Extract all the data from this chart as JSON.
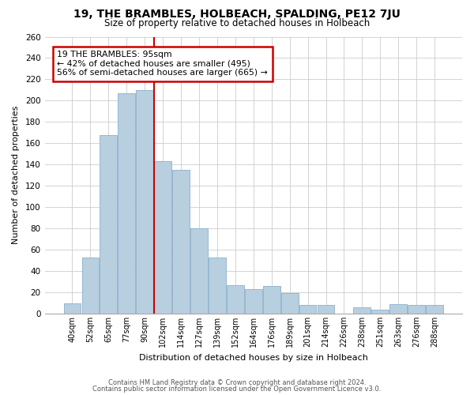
{
  "title": "19, THE BRAMBLES, HOLBEACH, SPALDING, PE12 7JU",
  "subtitle": "Size of property relative to detached houses in Holbeach",
  "xlabel": "Distribution of detached houses by size in Holbeach",
  "ylabel": "Number of detached properties",
  "bar_labels": [
    "40sqm",
    "52sqm",
    "65sqm",
    "77sqm",
    "90sqm",
    "102sqm",
    "114sqm",
    "127sqm",
    "139sqm",
    "152sqm",
    "164sqm",
    "176sqm",
    "189sqm",
    "201sqm",
    "214sqm",
    "226sqm",
    "238sqm",
    "251sqm",
    "263sqm",
    "276sqm",
    "288sqm"
  ],
  "bar_values": [
    10,
    53,
    168,
    207,
    210,
    143,
    135,
    80,
    53,
    27,
    23,
    26,
    19,
    8,
    8,
    0,
    6,
    4,
    9,
    8,
    8
  ],
  "bar_color": "#b8cfe0",
  "bar_edge_color": "#8cb0cc",
  "red_line_color": "#cc0000",
  "red_line_x": 4.5,
  "annotation_title": "19 THE BRAMBLES: 95sqm",
  "annotation_line1": "← 42% of detached houses are smaller (495)",
  "annotation_line2": "56% of semi-detached houses are larger (665) →",
  "annotation_box_facecolor": "#ffffff",
  "annotation_box_edgecolor": "#cc0000",
  "ylim": [
    0,
    260
  ],
  "yticks": [
    0,
    20,
    40,
    60,
    80,
    100,
    120,
    140,
    160,
    180,
    200,
    220,
    240,
    260
  ],
  "footer_line1": "Contains HM Land Registry data © Crown copyright and database right 2024.",
  "footer_line2": "Contains public sector information licensed under the Open Government Licence v3.0.",
  "background_color": "#ffffff",
  "grid_color": "#cccccc"
}
